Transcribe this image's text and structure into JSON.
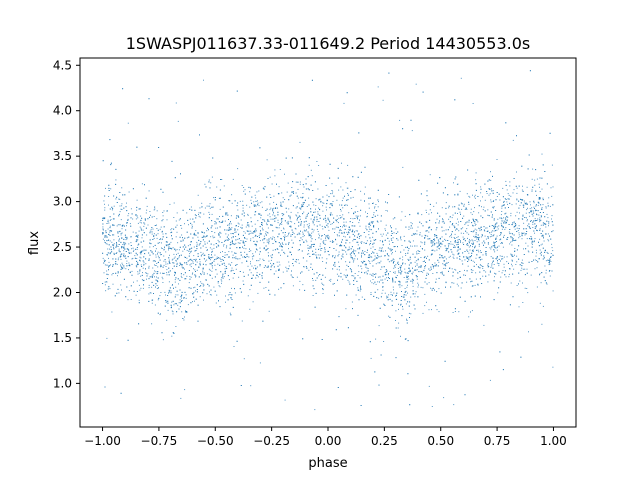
{
  "chart_data": {
    "type": "scatter",
    "title": "1SWASPJ011637.33-011649.2 Period 14430553.0s",
    "xlabel": "phase",
    "ylabel": "flux",
    "xlim": [
      -1.1,
      1.1
    ],
    "ylim": [
      0.52,
      4.58
    ],
    "xticks": [
      {
        "value": -1.0,
        "label": "−1.00"
      },
      {
        "value": -0.75,
        "label": "−0.75"
      },
      {
        "value": -0.5,
        "label": "−0.50"
      },
      {
        "value": -0.25,
        "label": "−0.25"
      },
      {
        "value": 0.0,
        "label": "0.00"
      },
      {
        "value": 0.25,
        "label": "0.25"
      },
      {
        "value": 0.5,
        "label": "0.50"
      },
      {
        "value": 0.75,
        "label": "0.75"
      },
      {
        "value": 1.0,
        "label": "1.00"
      }
    ],
    "yticks": [
      {
        "value": 1.0,
        "label": "1.0"
      },
      {
        "value": 1.5,
        "label": "1.5"
      },
      {
        "value": 2.0,
        "label": "2.0"
      },
      {
        "value": 2.5,
        "label": "2.5"
      },
      {
        "value": 3.0,
        "label": "3.0"
      },
      {
        "value": 3.5,
        "label": "3.5"
      },
      {
        "value": 4.0,
        "label": "4.0"
      },
      {
        "value": 4.5,
        "label": "4.5"
      }
    ],
    "grid": false,
    "marker_color": "#1f77b4",
    "phase_profile": {
      "description_values": "approximate mean flux per phase (folded light curve, repeats every 1.0 in phase)",
      "phase": [
        0.0,
        0.05,
        0.1,
        0.15,
        0.2,
        0.25,
        0.3,
        0.35,
        0.4,
        0.45,
        0.5,
        0.55,
        0.6,
        0.65,
        0.7,
        0.75,
        0.8,
        0.85,
        0.9,
        0.95
      ],
      "mean_flux": [
        2.55,
        2.55,
        2.55,
        2.5,
        2.45,
        2.4,
        2.3,
        2.25,
        2.4,
        2.45,
        2.5,
        2.5,
        2.55,
        2.6,
        2.6,
        2.65,
        2.65,
        2.7,
        2.75,
        2.7
      ],
      "typical_spread": 0.3,
      "flux_range": [
        0.7,
        4.45
      ]
    }
  }
}
